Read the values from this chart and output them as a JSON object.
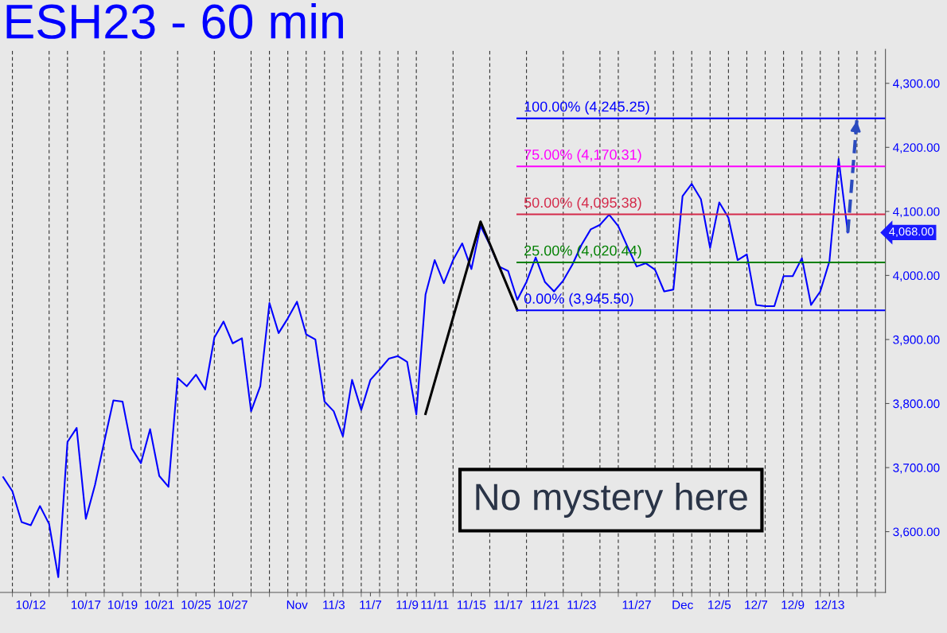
{
  "chart_data": {
    "type": "line",
    "title": "ESH23 - 60 min",
    "categories": [
      null,
      null,
      null,
      "10/12",
      null,
      null,
      null,
      null,
      null,
      "10/17",
      null,
      null,
      null,
      "10/19",
      null,
      null,
      null,
      "10/21",
      null,
      null,
      null,
      "10/25",
      null,
      null,
      null,
      "10/27",
      null,
      null,
      null,
      null,
      null,
      null,
      "Nov",
      null,
      null,
      null,
      "11/3",
      null,
      null,
      null,
      "11/7",
      null,
      null,
      null,
      "11/9",
      null,
      null,
      "11/11",
      null,
      null,
      null,
      "11/15",
      null,
      null,
      null,
      "11/17",
      null,
      null,
      null,
      "11/21",
      null,
      null,
      null,
      "11/23",
      null,
      null,
      null,
      null,
      null,
      "11/27",
      null,
      null,
      null,
      null,
      "Dec",
      null,
      null,
      null,
      "12/5",
      null,
      null,
      null,
      "12/7",
      null,
      null,
      null,
      "12/9",
      null,
      null,
      null,
      "12/13",
      null,
      null,
      null,
      null,
      null,
      null
    ],
    "ylim": [
      3505,
      4353
    ],
    "yticks": [
      {
        "value": 3600,
        "label": "3,600.00"
      },
      {
        "value": 3700,
        "label": "3,700.00"
      },
      {
        "value": 3800,
        "label": "3,800.00"
      },
      {
        "value": 3900,
        "label": "3,900.00"
      },
      {
        "value": 4000,
        "label": "4,000.00"
      },
      {
        "value": 4100,
        "label": "4,100.00"
      },
      {
        "value": 4200,
        "label": "4,200.00"
      },
      {
        "value": 4300,
        "label": "4,300.00"
      }
    ],
    "grid": "x",
    "series": [
      {
        "color": "#0000ff",
        "line_style": "solid",
        "values": [
          3685,
          3663,
          3615,
          3610,
          3640,
          3612,
          3529,
          3740,
          3762,
          3620,
          3673,
          3740,
          3805,
          3803,
          3730,
          3707,
          3760,
          3687,
          3670,
          3840,
          3827,
          3845,
          3822,
          3903,
          3928,
          3894,
          3902,
          3788,
          3827,
          3957,
          3910,
          3933,
          3959,
          3908,
          3900,
          3803,
          3788,
          3749,
          3837,
          3790,
          3837,
          3853,
          3870,
          3874,
          3865,
          3783,
          3970,
          4024,
          3988,
          4024,
          4050,
          4010,
          4077,
          4048,
          4014,
          4007,
          3962,
          3990,
          4028,
          3990,
          3975,
          3992,
          4017,
          4048,
          4072,
          4079,
          4095,
          4077,
          4045,
          4014,
          4019,
          4009,
          3975,
          3978,
          4124,
          4143,
          4119,
          4043,
          4114,
          4090,
          4024,
          4033,
          3954,
          3952,
          3952,
          3999,
          3999,
          4027,
          3954,
          3975,
          4022,
          4182,
          4067,
          null,
          null,
          null,
          null
        ]
      },
      {
        "color": "#000000",
        "line_style": "solid",
        "values": [
          null,
          null,
          null,
          null,
          null,
          null,
          null,
          null,
          null,
          null,
          null,
          null,
          null,
          null,
          null,
          null,
          null,
          null,
          null,
          null,
          null,
          null,
          null,
          null,
          null,
          null,
          null,
          null,
          null,
          null,
          null,
          null,
          null,
          null,
          null,
          null,
          null,
          null,
          null,
          null,
          null,
          null,
          null,
          null,
          null,
          null,
          3784,
          null,
          null,
          null,
          null,
          null,
          4084,
          null,
          null,
          null,
          3946,
          null,
          null,
          null,
          null,
          null,
          null,
          null,
          null,
          null,
          null,
          null,
          null,
          null,
          null,
          null,
          null,
          null,
          null,
          null,
          null,
          null,
          null,
          null,
          null,
          null,
          null,
          null,
          null,
          null,
          null,
          null,
          null,
          null,
          null,
          null,
          null,
          null,
          null,
          null,
          null
        ]
      },
      {
        "color": "#2b4bbf",
        "line_style": "dashed",
        "values": [
          null,
          null,
          null,
          null,
          null,
          null,
          null,
          null,
          null,
          null,
          null,
          null,
          null,
          null,
          null,
          null,
          null,
          null,
          null,
          null,
          null,
          null,
          null,
          null,
          null,
          null,
          null,
          null,
          null,
          null,
          null,
          null,
          null,
          null,
          null,
          null,
          null,
          null,
          null,
          null,
          null,
          null,
          null,
          null,
          null,
          null,
          null,
          null,
          null,
          null,
          null,
          null,
          null,
          null,
          null,
          null,
          null,
          null,
          null,
          null,
          null,
          null,
          null,
          null,
          null,
          null,
          null,
          null,
          null,
          null,
          null,
          null,
          null,
          null,
          null,
          null,
          null,
          null,
          null,
          null,
          null,
          null,
          null,
          null,
          null,
          null,
          null,
          null,
          null,
          null,
          null,
          null,
          4067,
          4245,
          null,
          null,
          null
        ]
      },
      {
        "name": "100.00% (4,245.25)",
        "color": "#0000ff",
        "line_style": "solid",
        "values": [
          null,
          null,
          null,
          null,
          null,
          null,
          null,
          null,
          null,
          null,
          null,
          null,
          null,
          null,
          null,
          null,
          null,
          null,
          null,
          null,
          null,
          null,
          null,
          null,
          null,
          null,
          null,
          null,
          null,
          null,
          null,
          null,
          null,
          null,
          null,
          null,
          null,
          null,
          null,
          null,
          null,
          null,
          null,
          null,
          null,
          null,
          null,
          null,
          null,
          null,
          null,
          null,
          null,
          null,
          null,
          null,
          4245.25,
          null,
          null,
          null,
          null,
          null,
          null,
          null,
          null,
          null,
          null,
          null,
          null,
          null,
          null,
          null,
          null,
          null,
          null,
          null,
          null,
          null,
          null,
          null,
          null,
          null,
          null,
          null,
          null,
          null,
          null,
          null,
          null,
          null,
          null,
          null,
          null,
          null,
          null,
          null,
          4245.25
        ]
      },
      {
        "name": "75.00% (4,170.31)",
        "color": "#ff00ff",
        "line_style": "solid",
        "values": [
          null,
          null,
          null,
          null,
          null,
          null,
          null,
          null,
          null,
          null,
          null,
          null,
          null,
          null,
          null,
          null,
          null,
          null,
          null,
          null,
          null,
          null,
          null,
          null,
          null,
          null,
          null,
          null,
          null,
          null,
          null,
          null,
          null,
          null,
          null,
          null,
          null,
          null,
          null,
          null,
          null,
          null,
          null,
          null,
          null,
          null,
          null,
          null,
          null,
          null,
          null,
          null,
          null,
          null,
          null,
          null,
          4170.31,
          null,
          null,
          null,
          null,
          null,
          null,
          null,
          null,
          null,
          null,
          null,
          null,
          null,
          null,
          null,
          null,
          null,
          null,
          null,
          null,
          null,
          null,
          null,
          null,
          null,
          null,
          null,
          null,
          null,
          null,
          null,
          null,
          null,
          null,
          null,
          null,
          null,
          null,
          null,
          4170.31
        ]
      },
      {
        "name": "50.00% (4,095.38)",
        "color": "#d42a4a",
        "line_style": "solid",
        "values": [
          null,
          null,
          null,
          null,
          null,
          null,
          null,
          null,
          null,
          null,
          null,
          null,
          null,
          null,
          null,
          null,
          null,
          null,
          null,
          null,
          null,
          null,
          null,
          null,
          null,
          null,
          null,
          null,
          null,
          null,
          null,
          null,
          null,
          null,
          null,
          null,
          null,
          null,
          null,
          null,
          null,
          null,
          null,
          null,
          null,
          null,
          null,
          null,
          null,
          null,
          null,
          null,
          null,
          null,
          null,
          null,
          4095.38,
          null,
          null,
          null,
          null,
          null,
          null,
          null,
          null,
          null,
          null,
          null,
          null,
          null,
          null,
          null,
          null,
          null,
          null,
          null,
          null,
          null,
          null,
          null,
          null,
          null,
          null,
          null,
          null,
          null,
          null,
          null,
          null,
          null,
          null,
          null,
          null,
          null,
          null,
          null,
          4095.38
        ]
      },
      {
        "name": "25.00% (4,020.44)",
        "color": "#008000",
        "line_style": "solid",
        "values": [
          null,
          null,
          null,
          null,
          null,
          null,
          null,
          null,
          null,
          null,
          null,
          null,
          null,
          null,
          null,
          null,
          null,
          null,
          null,
          null,
          null,
          null,
          null,
          null,
          null,
          null,
          null,
          null,
          null,
          null,
          null,
          null,
          null,
          null,
          null,
          null,
          null,
          null,
          null,
          null,
          null,
          null,
          null,
          null,
          null,
          null,
          null,
          null,
          null,
          null,
          null,
          null,
          null,
          null,
          null,
          null,
          4020.44,
          null,
          null,
          null,
          null,
          null,
          null,
          null,
          null,
          null,
          null,
          null,
          null,
          null,
          null,
          null,
          null,
          null,
          null,
          null,
          null,
          null,
          null,
          null,
          null,
          null,
          null,
          null,
          null,
          null,
          null,
          null,
          null,
          null,
          null,
          null,
          null,
          null,
          null,
          null,
          4020.44
        ]
      },
      {
        "name": "0.00% (3,945.50)",
        "color": "#0000ff",
        "line_style": "solid",
        "values": [
          null,
          null,
          null,
          null,
          null,
          null,
          null,
          null,
          null,
          null,
          null,
          null,
          null,
          null,
          null,
          null,
          null,
          null,
          null,
          null,
          null,
          null,
          null,
          null,
          null,
          null,
          null,
          null,
          null,
          null,
          null,
          null,
          null,
          null,
          null,
          null,
          null,
          null,
          null,
          null,
          null,
          null,
          null,
          null,
          null,
          null,
          null,
          null,
          null,
          null,
          null,
          null,
          null,
          null,
          null,
          null,
          3945.5,
          null,
          null,
          null,
          null,
          null,
          null,
          null,
          null,
          null,
          null,
          null,
          null,
          null,
          null,
          null,
          null,
          null,
          null,
          null,
          null,
          null,
          null,
          null,
          null,
          null,
          null,
          null,
          null,
          null,
          null,
          null,
          null,
          null,
          null,
          null,
          null,
          null,
          null,
          null,
          3945.5
        ]
      }
    ],
    "annotations": [
      "No mystery here",
      "4,068.00"
    ]
  }
}
